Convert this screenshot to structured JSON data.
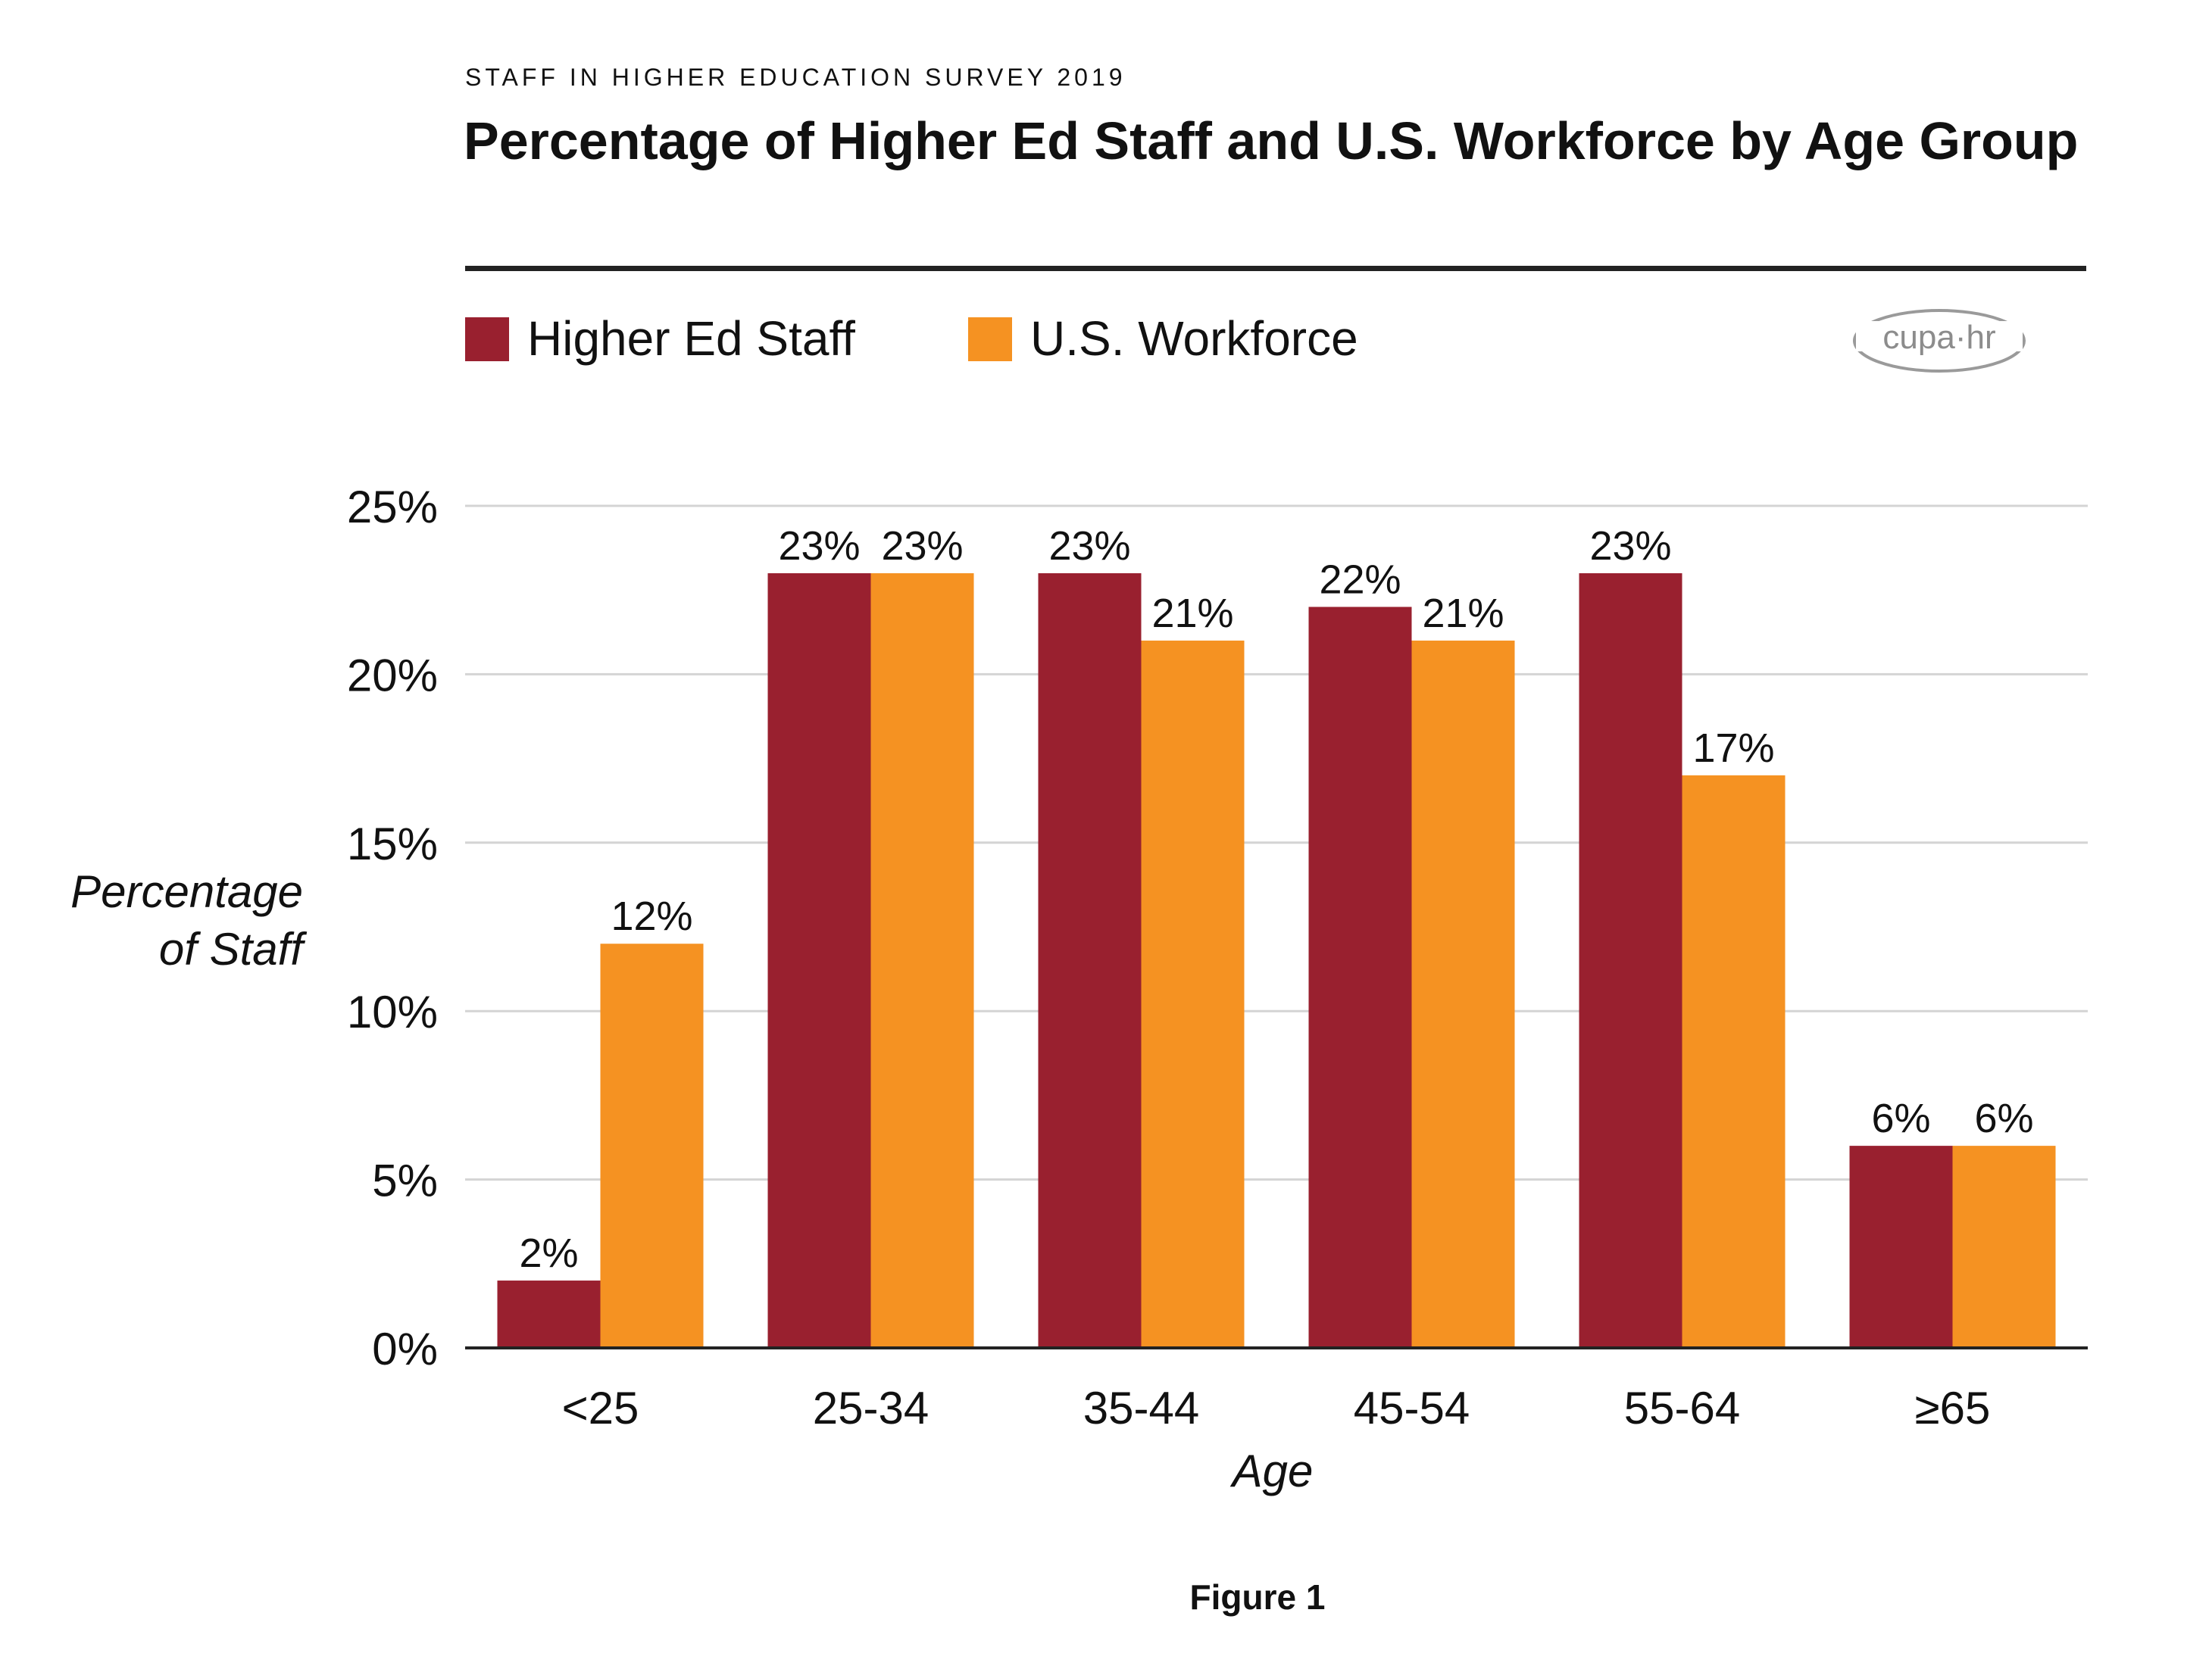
{
  "header": {
    "eyebrow": "STAFF IN HIGHER EDUCATION SURVEY 2019",
    "title": "Percentage of Higher Ed Staff and U.S. Workforce by Age Group"
  },
  "legend": {
    "items": [
      {
        "label": "Higher Ed Staff",
        "color": "#99202f"
      },
      {
        "label": "U.S. Workforce",
        "color": "#f59222"
      }
    ]
  },
  "logo": {
    "text": "cupa·hr",
    "icon": "cupa-hr-logo"
  },
  "caption": "Figure 1",
  "chart_data": {
    "type": "bar",
    "title": "Percentage of Higher Ed Staff and U.S. Workforce by Age Group",
    "xlabel": "Age",
    "ylabel": "Percentage of Staff",
    "categories": [
      "<25",
      "25-34",
      "35-44",
      "45-54",
      "55-64",
      "≥65"
    ],
    "series": [
      {
        "name": "Higher Ed Staff",
        "color": "#99202f",
        "values": [
          2,
          23,
          23,
          22,
          23,
          6
        ]
      },
      {
        "name": "U.S. Workforce",
        "color": "#f59222",
        "values": [
          12,
          23,
          21,
          21,
          17,
          6
        ]
      }
    ],
    "ylim": [
      0,
      25
    ],
    "yticks": [
      0,
      5,
      10,
      15,
      20,
      25
    ],
    "ytick_labels": [
      "0%",
      "5%",
      "10%",
      "15%",
      "20%",
      "25%"
    ],
    "data_labels": [
      [
        "2%",
        "23%",
        "23%",
        "22%",
        "23%",
        "6%"
      ],
      [
        "12%",
        "23%",
        "21%",
        "21%",
        "17%",
        "6%"
      ]
    ],
    "grid": true,
    "legend_position": "top-left"
  }
}
